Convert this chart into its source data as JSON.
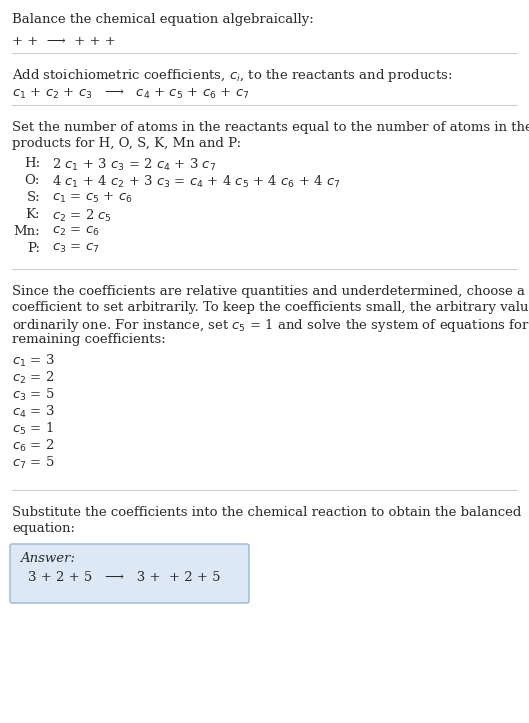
{
  "title": "Balance the chemical equation algebraically:",
  "line1": "+ +  ⟶  + + +",
  "section2_title": "Add stoichiometric coefficients, $c_i$, to the reactants and products:",
  "line2": "$c_1$ + $c_2$ + $c_3$   ⟶   $c_4$ + $c_5$ + $c_6$ + $c_7$",
  "section3_title": "Set the number of atoms in the reactants equal to the number of atoms in the\nproducts for H, O, S, K, Mn and P:",
  "equations": [
    [
      "H:",
      "2 $c_1$ + 3 $c_3$ = 2 $c_4$ + 3 $c_7$"
    ],
    [
      "O:",
      "4 $c_1$ + 4 $c_2$ + 3 $c_3$ = $c_4$ + 4 $c_5$ + 4 $c_6$ + 4 $c_7$"
    ],
    [
      "S:",
      "$c_1$ = $c_5$ + $c_6$"
    ],
    [
      "K:",
      "$c_2$ = 2 $c_5$"
    ],
    [
      "Mn:",
      "$c_2$ = $c_6$"
    ],
    [
      "P:",
      "$c_3$ = $c_7$"
    ]
  ],
  "section4_para": "Since the coefficients are relative quantities and underdetermined, choose a\ncoefficient to set arbitrarily. To keep the coefficients small, the arbitrary value is\nordinarily one. For instance, set $c_5$ = 1 and solve the system of equations for the\nremaining coefficients:",
  "coefficients": [
    "$c_1$ = 3",
    "$c_2$ = 2",
    "$c_3$ = 5",
    "$c_4$ = 3",
    "$c_5$ = 1",
    "$c_6$ = 2",
    "$c_7$ = 5"
  ],
  "section5_title": "Substitute the coefficients into the chemical reaction to obtain the balanced\nequation:",
  "answer_label": "Answer:",
  "answer_line": "3 + 2 + 5   ⟶   3 +  + 2 + 5",
  "bg_color": "#ffffff",
  "text_color": "#2a2a2a",
  "line_color": "#cccccc",
  "answer_box_facecolor": "#dce8f5",
  "answer_box_edgecolor": "#9ab5d0"
}
